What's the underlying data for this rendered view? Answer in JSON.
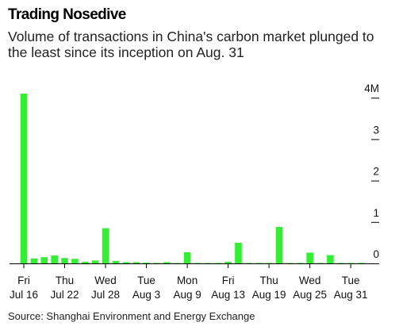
{
  "title": "Trading Nosedive",
  "subtitle": "Volume of transactions in China's carbon market plunged to the least since its inception on Aug. 31",
  "source": "Source: Shanghai Environment and Energy Exchange",
  "colors": {
    "bar": "#33ee33",
    "axis": "#000000",
    "grid": "#000000"
  },
  "chart_data": {
    "type": "bar",
    "series": [
      {
        "values": [
          4.1,
          0.12,
          0.15,
          0.19,
          0.13,
          0.11,
          0.04,
          0.07,
          0.85,
          0.06,
          0.03,
          0.03,
          0.02,
          0.01,
          0.03,
          0.01,
          0.27,
          0.005,
          0.005,
          0.005,
          0.04,
          0.5,
          0.005,
          0.005,
          0.005,
          0.88,
          0.005,
          0.005,
          0.26,
          0.005,
          0.2,
          0.005,
          0.01,
          0.005
        ]
      }
    ],
    "x_tick_labels": [
      {
        "index": 0,
        "line1": "Fri",
        "line2": "Jul 16"
      },
      {
        "index": 4,
        "line1": "Thu",
        "line2": "Jul 22"
      },
      {
        "index": 8,
        "line1": "Wed",
        "line2": "Jul 28"
      },
      {
        "index": 12,
        "line1": "Tue",
        "line2": "Aug 3"
      },
      {
        "index": 16,
        "line1": "Mon",
        "line2": "Aug 9"
      },
      {
        "index": 20,
        "line1": "Fri",
        "line2": "Aug 13"
      },
      {
        "index": 24,
        "line1": "Thu",
        "line2": "Aug 19"
      },
      {
        "index": 28,
        "line1": "Wed",
        "line2": "Aug 25"
      },
      {
        "index": 32,
        "line1": "Tue",
        "line2": "Aug 31"
      }
    ],
    "y_ticks": [
      {
        "value": 0,
        "label": "0"
      },
      {
        "value": 1,
        "label": "1"
      },
      {
        "value": 2,
        "label": "2"
      },
      {
        "value": 3,
        "label": "3"
      },
      {
        "value": 4,
        "label": "4M"
      }
    ],
    "ylim": [
      0,
      4.2
    ],
    "xlabel": "",
    "ylabel": "",
    "grid": false,
    "y_axis_side": "right"
  }
}
